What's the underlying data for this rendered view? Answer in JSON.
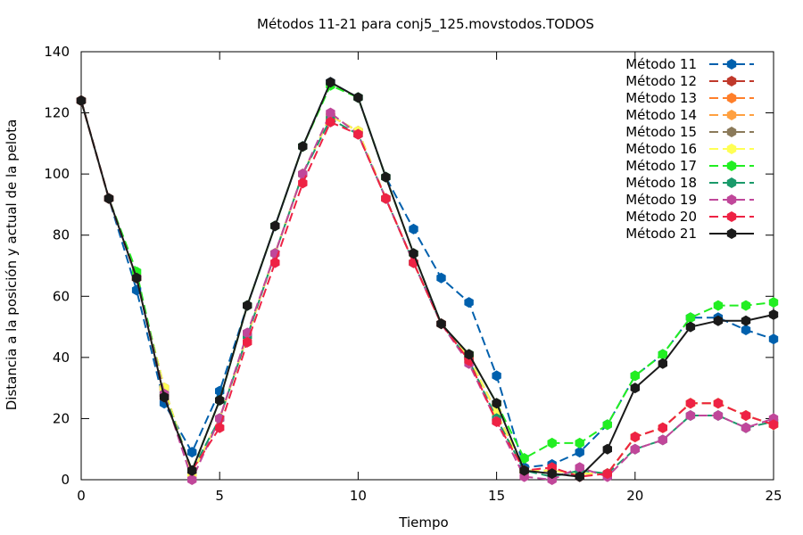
{
  "chart_data": {
    "type": "line",
    "title": "Métodos 11-21 para conj5_125.movstodos.TODOS",
    "xlabel": "Tiempo",
    "ylabel": "Distancia a la posición y actual de la pelota",
    "xlim": [
      0,
      25
    ],
    "ylim": [
      0,
      140
    ],
    "xticks": [
      "0",
      "5",
      "10",
      "15",
      "20",
      "25"
    ],
    "yticks": [
      "0",
      "20",
      "40",
      "60",
      "80",
      "100",
      "120",
      "140"
    ],
    "grid": false,
    "legend_position": "top-right",
    "x": [
      0,
      1,
      2,
      3,
      4,
      5,
      6,
      7,
      8,
      9,
      10,
      11,
      12,
      13,
      14,
      15,
      16,
      17,
      18,
      19,
      20,
      21,
      22,
      23,
      24,
      25
    ],
    "series": [
      {
        "name": "Método 11",
        "color": "#0060ad",
        "dash": "10,5",
        "values": [
          124,
          92,
          62,
          25,
          9,
          29,
          57,
          83,
          109,
          130,
          125,
          99,
          82,
          66,
          58,
          34,
          4,
          5,
          9,
          18,
          34,
          41,
          53,
          53,
          49,
          46
        ]
      },
      {
        "name": "Método 12",
        "color": "#c0392b",
        "dash": "10,5",
        "values": [
          124,
          92,
          66,
          30,
          2,
          20,
          47,
          74,
          100,
          119,
          114,
          92,
          71,
          51,
          40,
          22,
          3,
          3,
          2,
          2,
          14,
          17,
          25,
          25,
          21,
          18
        ]
      },
      {
        "name": "Método 13",
        "color": "#ff7f2a",
        "dash": "10,5",
        "values": [
          124,
          92,
          66,
          30,
          2,
          20,
          47,
          74,
          100,
          119,
          114,
          92,
          71,
          51,
          40,
          22,
          3,
          3,
          2,
          2,
          14,
          17,
          25,
          25,
          21,
          18
        ]
      },
      {
        "name": "Método 14",
        "color": "#ffa040",
        "dash": "10,5",
        "values": [
          124,
          92,
          66,
          30,
          2,
          20,
          47,
          74,
          100,
          119,
          114,
          92,
          71,
          51,
          40,
          22,
          3,
          3,
          2,
          2,
          14,
          17,
          25,
          25,
          21,
          18
        ]
      },
      {
        "name": "Método 15",
        "color": "#8b7a5a",
        "dash": "10,5",
        "values": [
          124,
          92,
          66,
          30,
          2,
          20,
          47,
          74,
          100,
          119,
          114,
          92,
          71,
          51,
          40,
          22,
          3,
          3,
          2,
          2,
          14,
          17,
          25,
          25,
          21,
          18
        ]
      },
      {
        "name": "Método 16",
        "color": "#ffff55",
        "dash": "10,5",
        "values": [
          124,
          92,
          66,
          30,
          2,
          20,
          47,
          74,
          100,
          119,
          114,
          92,
          71,
          51,
          40,
          22,
          3,
          3,
          2,
          2,
          14,
          17,
          25,
          25,
          21,
          18
        ]
      },
      {
        "name": "Método 17",
        "color": "#22ee22",
        "dash": "10,5",
        "values": [
          124,
          92,
          68,
          28,
          3,
          26,
          57,
          83,
          109,
          129,
          125,
          99,
          74,
          51,
          41,
          25,
          7,
          12,
          12,
          18,
          34,
          41,
          53,
          57,
          57,
          58
        ]
      },
      {
        "name": "Método 18",
        "color": "#1a9a6a",
        "dash": "10,5",
        "values": [
          124,
          92,
          66,
          28,
          3,
          20,
          47,
          74,
          100,
          118,
          113,
          92,
          71,
          51,
          39,
          20,
          3,
          1,
          3,
          2,
          10,
          13,
          21,
          21,
          17,
          19
        ]
      },
      {
        "name": "Método 19",
        "color": "#c0479a",
        "dash": "10,5",
        "values": [
          124,
          92,
          66,
          28,
          0,
          20,
          48,
          74,
          100,
          120,
          113,
          92,
          71,
          51,
          38,
          19,
          1,
          0,
          4,
          1,
          10,
          13,
          21,
          21,
          17,
          20
        ]
      },
      {
        "name": "Método 20",
        "color": "#ee2244",
        "dash": "10,5",
        "values": [
          124,
          92,
          66,
          27,
          3,
          17,
          45,
          71,
          97,
          117,
          113,
          92,
          71,
          51,
          39,
          19,
          3,
          4,
          1,
          2,
          14,
          17,
          25,
          25,
          21,
          18
        ]
      },
      {
        "name": "Método 21",
        "color": "#1a1a1a",
        "dash": "",
        "values": [
          124,
          92,
          66,
          27,
          3,
          26,
          57,
          83,
          109,
          130,
          125,
          99,
          74,
          51,
          41,
          25,
          3,
          2,
          1,
          10,
          30,
          38,
          50,
          52,
          52,
          54
        ]
      }
    ]
  }
}
